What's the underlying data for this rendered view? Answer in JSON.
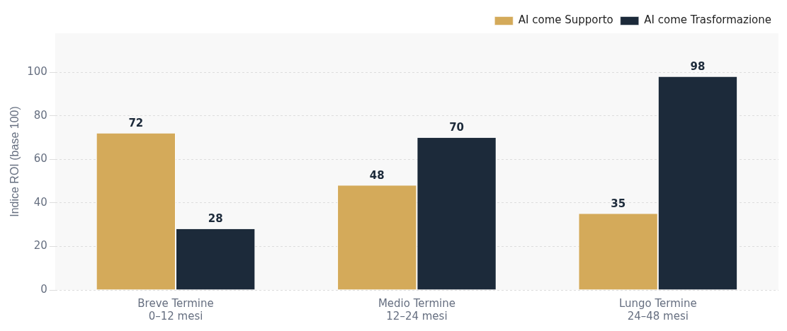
{
  "chart_data": {
    "type": "bar",
    "ylabel": "Indice ROI (base 100)",
    "categories": [
      "Breve Termine\n0–12 mesi",
      "Medio Termine\n12–24 mesi",
      "Lungo Termine\n24–48 mesi"
    ],
    "series": [
      {
        "name": "AI come Supporto",
        "color": "#d4aa5a",
        "values": [
          72,
          48,
          35
        ]
      },
      {
        "name": "AI come Trasformazione",
        "color": "#1c2a3a",
        "values": [
          28,
          70,
          98
        ]
      }
    ],
    "ylim": [
      0,
      118
    ],
    "yticks": [
      0,
      20,
      40,
      60,
      80,
      100
    ],
    "grid": "y",
    "legend": "top right",
    "data_labels": true
  }
}
